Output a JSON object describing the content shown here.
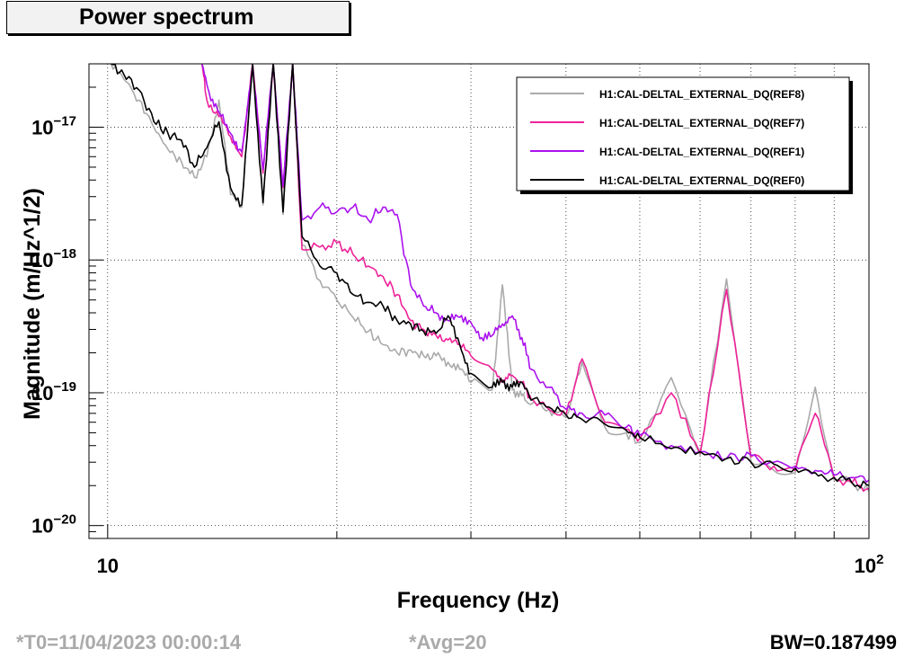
{
  "title": "Power spectrum",
  "footer": {
    "t0": "*T0=11/04/2023 00:00:14",
    "avg": "*Avg=20",
    "bw": "BW=0.187499"
  },
  "colors": {
    "text_grey": "#aaaaaa"
  },
  "chart_data": {
    "type": "line",
    "xlabel": "Frequency (Hz)",
    "ylabel": "Magnitude (m/Hz^1/2)",
    "xscale": "log",
    "yscale": "log",
    "xlim": [
      9.45,
      100
    ],
    "ylim": [
      8e-21,
      3e-17
    ],
    "grid": true,
    "legend_position": "top-right",
    "x_ticks": [
      {
        "value": 10,
        "label": "10"
      },
      {
        "value": 100,
        "label": "10",
        "sup": "2"
      }
    ],
    "y_ticks": [
      {
        "value": 1e-20,
        "label": "10",
        "sup": "−20"
      },
      {
        "value": 1e-19,
        "label": "10",
        "sup": "−19"
      },
      {
        "value": 1e-18,
        "label": "10",
        "sup": "−18"
      },
      {
        "value": 1e-17,
        "label": "10",
        "sup": "−17"
      }
    ],
    "series": [
      {
        "name": "H1:CAL-DELTAL_EXTERNAL_DQ(REF8)",
        "color": "#aaaaaa",
        "x": [
          10.1,
          10.5,
          11,
          11.5,
          12,
          12.5,
          13,
          13.5,
          14,
          14.5,
          15,
          15.5,
          16,
          16.5,
          17,
          17.5,
          18,
          19,
          20,
          21,
          22,
          23,
          24,
          25,
          26,
          27,
          28,
          29,
          30,
          32,
          33,
          34,
          35,
          36,
          38,
          40,
          42,
          45,
          48,
          50,
          55,
          60,
          65,
          70,
          75,
          80,
          85,
          90,
          95,
          100
        ],
        "y": [
          3e-17,
          2.3e-17,
          1.6e-17,
          1e-17,
          6.8e-18,
          5.5e-18,
          4.2e-18,
          6e-18,
          1.6e-17,
          3.1e-18,
          2.5e-18,
          3e-17,
          2.6e-18,
          3e-17,
          2.2e-18,
          3e-17,
          1.3e-18,
          7e-19,
          5e-19,
          3.7e-19,
          2.9e-19,
          2.3e-19,
          2e-19,
          2.1e-19,
          1.9e-19,
          1.9e-19,
          1.7e-19,
          1.5e-19,
          1.2e-19,
          1.05e-19,
          6.5e-19,
          1.05e-19,
          9.5e-20,
          8.2e-20,
          7.5e-20,
          6.5e-20,
          1.7e-19,
          5.5e-20,
          5e-20,
          4.2e-20,
          1.3e-19,
          3.4e-20,
          7.2e-19,
          3e-20,
          2.6e-20,
          2.5e-20,
          1.1e-19,
          2.2e-20,
          2.1e-20,
          1.8e-20
        ]
      },
      {
        "name": "H1:CAL-DELTAL_EXTERNAL_DQ(REF7)",
        "color": "#ee2299",
        "x": [
          13.3,
          13.5,
          14,
          14.5,
          15,
          15.5,
          16,
          16.5,
          17,
          17.5,
          18,
          19,
          20,
          21,
          22,
          23,
          24,
          25,
          26,
          27,
          28,
          29,
          30,
          32,
          33,
          34,
          35,
          36,
          38,
          40,
          42,
          45,
          48,
          50,
          55,
          60,
          65,
          70,
          75,
          80,
          85,
          90,
          95,
          100
        ],
        "y": [
          3e-17,
          1.6e-17,
          1.2e-17,
          8.5e-18,
          6e-18,
          3e-17,
          4.5e-18,
          3e-17,
          3.5e-18,
          3e-17,
          1.2e-18,
          1.25e-18,
          1.35e-18,
          1.1e-18,
          9e-19,
          7.5e-19,
          5.5e-19,
          3.5e-19,
          3e-19,
          2.7e-19,
          2.5e-19,
          2.3e-19,
          1.9e-19,
          1.5e-19,
          1.25e-19,
          1.35e-19,
          1.2e-19,
          9e-20,
          7.5e-20,
          6.8e-20,
          1.8e-19,
          6e-20,
          5.3e-20,
          4.5e-20,
          1e-19,
          3.5e-20,
          6e-19,
          3.3e-20,
          2.8e-20,
          2.6e-20,
          7e-20,
          2.3e-20,
          2.1e-20,
          1.9e-20
        ]
      },
      {
        "name": "H1:CAL-DELTAL_EXTERNAL_DQ(REF1)",
        "color": "#aa11ee",
        "x": [
          13.3,
          13.6,
          14,
          14.5,
          15,
          15.5,
          16,
          16.5,
          17,
          17.5,
          18,
          19,
          20,
          21,
          22,
          23,
          24,
          25,
          26,
          27,
          28,
          29,
          30,
          31,
          32,
          33,
          34,
          35,
          36,
          38,
          40,
          42,
          45,
          48,
          50,
          55,
          60,
          65,
          70,
          75,
          80,
          85,
          90,
          95,
          100
        ],
        "y": [
          3e-17,
          1.8e-17,
          1.3e-17,
          9e-18,
          6.5e-18,
          3e-17,
          4.8e-18,
          3e-17,
          3.6e-18,
          3e-17,
          2e-18,
          2.5e-18,
          2.3e-18,
          2.5e-18,
          2e-18,
          2.5e-18,
          2.2e-18,
          6.5e-19,
          4.5e-19,
          4e-19,
          3.5e-19,
          3.7e-19,
          3.4e-19,
          2.6e-19,
          2.7e-19,
          3.3e-19,
          3.8e-19,
          2.6e-19,
          1.5e-19,
          1.1e-19,
          7.5e-20,
          7e-20,
          6.8e-20,
          5.5e-20,
          4.8e-20,
          4e-20,
          3.6e-20,
          3.2e-20,
          3.4e-20,
          3e-20,
          2.8e-20,
          2.6e-20,
          2.4e-20,
          2.3e-20,
          2.2e-20
        ]
      },
      {
        "name": "H1:CAL-DELTAL_EXTERNAL_DQ(REF0)",
        "color": "#000000",
        "x": [
          10.1,
          10.5,
          11,
          11.5,
          12,
          12.5,
          13,
          13.5,
          14,
          14.5,
          15,
          15.5,
          16,
          16.5,
          17,
          17.5,
          18,
          19,
          20,
          21,
          22,
          23,
          24,
          25,
          26,
          27,
          28,
          29,
          30,
          32,
          33,
          34,
          35,
          36,
          38,
          40,
          42,
          45,
          48,
          50,
          55,
          60,
          65,
          70,
          75,
          80,
          85,
          90,
          95,
          100
        ],
        "y": [
          3e-17,
          2.5e-17,
          1.9e-17,
          1.1e-17,
          9e-18,
          8e-18,
          5e-18,
          7e-18,
          1.1e-17,
          3.5e-18,
          2.6e-18,
          3e-17,
          2.7e-18,
          3e-17,
          2.3e-18,
          3e-17,
          1.5e-18,
          9e-19,
          8e-19,
          5.5e-19,
          4.8e-19,
          4.5e-19,
          3.5e-19,
          3.3e-19,
          2.9e-19,
          2.8e-19,
          3.8e-19,
          2.3e-19,
          1.4e-19,
          1.1e-19,
          1.2e-19,
          1.1e-19,
          1.2e-19,
          8.8e-20,
          7.8e-20,
          6.8e-20,
          6.3e-20,
          5.8e-20,
          5.2e-20,
          4.6e-20,
          3.8e-20,
          3.6e-20,
          3.2e-20,
          3e-20,
          2.9e-20,
          2.7e-20,
          2.5e-20,
          2.3e-20,
          2.1e-20,
          2e-20
        ]
      }
    ]
  }
}
